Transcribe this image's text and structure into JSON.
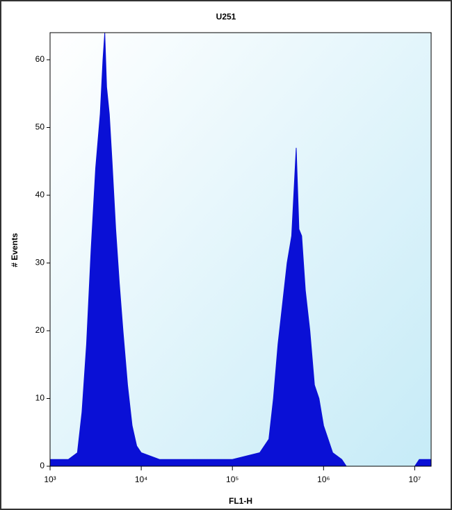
{
  "chart_data": {
    "type": "area",
    "title": "U251",
    "x_label": "FL1-H",
    "y_label": "# Events",
    "log_x": true,
    "color": "#0a10d6",
    "xlim": [
      1000,
      15135612
    ],
    "ylim": [
      0,
      64
    ],
    "xticks": [
      {
        "value": 1000,
        "label": "10³"
      },
      {
        "value": 10000,
        "label": "10⁴"
      },
      {
        "value": 100000,
        "label": "10⁵"
      },
      {
        "value": 1000000,
        "label": "10⁶"
      },
      {
        "value": 10000000,
        "label": "10⁷"
      }
    ],
    "yticks": [
      0,
      10,
      20,
      30,
      40,
      50,
      60
    ],
    "x": [
      1000,
      1259,
      1585,
      1995,
      2239,
      2512,
      2818,
      3162,
      3548,
      3802,
      3981,
      4169,
      4467,
      4786,
      5248,
      5754,
      6310,
      7079,
      7943,
      8913,
      10000,
      15849,
      31623,
      63096,
      100000,
      199526,
      251189,
      281838,
      316228,
      354813,
      398107,
      446684,
      501187,
      537032,
      575440,
      630957,
      707946,
      794328,
      891251,
      1000000,
      1258925,
      1584893,
      1778279,
      10000000,
      11220185,
      12589254,
      15135612
    ],
    "values": [
      1,
      1,
      1,
      2,
      8,
      18,
      32,
      44,
      52,
      60,
      64,
      56,
      52,
      45,
      35,
      27,
      20,
      12,
      6,
      3,
      2,
      1,
      1,
      1,
      1,
      2,
      4,
      10,
      18,
      24,
      30,
      34,
      47,
      35,
      34,
      26,
      20,
      12,
      10,
      6,
      2,
      1,
      0,
      0,
      1,
      1,
      1
    ]
  }
}
